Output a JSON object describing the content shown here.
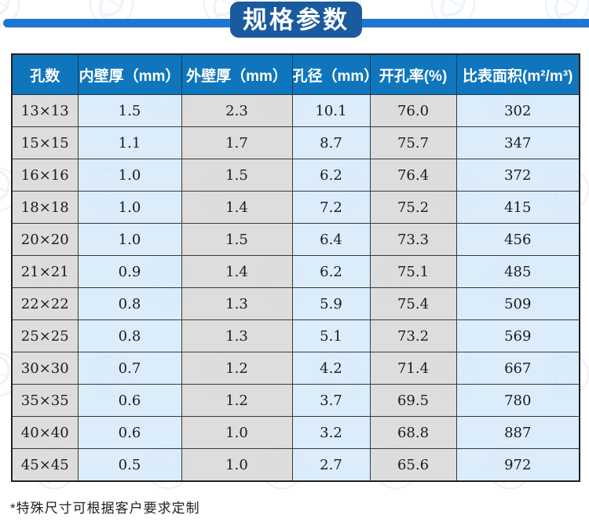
{
  "header": {
    "title": "规格参数"
  },
  "chart_data": {
    "type": "table",
    "title": "规格参数",
    "columns": [
      "孔数",
      "内壁厚（mm）",
      "外壁厚（mm）",
      "孔径（mm）",
      "开孔率(%)",
      "比表面积(m²/m³)"
    ],
    "rows": [
      [
        "13×13",
        "1.5",
        "2.3",
        "10.1",
        "76.0",
        "302"
      ],
      [
        "15×15",
        "1.1",
        "1.7",
        "8.7",
        "75.7",
        "347"
      ],
      [
        "16×16",
        "1.0",
        "1.5",
        "6.2",
        "76.4",
        "372"
      ],
      [
        "18×18",
        "1.0",
        "1.4",
        "7.2",
        "75.2",
        "415"
      ],
      [
        "20×20",
        "1.0",
        "1.5",
        "6.4",
        "73.3",
        "456"
      ],
      [
        "21×21",
        "0.9",
        "1.4",
        "6.2",
        "75.1",
        "485"
      ],
      [
        "22×22",
        "0.8",
        "1.3",
        "5.9",
        "75.4",
        "509"
      ],
      [
        "25×25",
        "0.8",
        "1.3",
        "5.1",
        "73.2",
        "569"
      ],
      [
        "30×30",
        "0.7",
        "1.2",
        "4.2",
        "71.4",
        "667"
      ],
      [
        "35×35",
        "0.6",
        "1.2",
        "3.7",
        "69.5",
        "780"
      ],
      [
        "40×40",
        "0.6",
        "1.0",
        "3.2",
        "68.8",
        "887"
      ],
      [
        "45×45",
        "0.5",
        "1.0",
        "2.7",
        "65.6",
        "972"
      ]
    ]
  },
  "footnote": {
    "text": "*特殊尺寸可根据客户要求定制"
  },
  "colors": {
    "accent_line": "#1d76d2",
    "badge_bg": "#1a5a9e",
    "header_bg": "#0f76bd",
    "header_text": "#ffffff",
    "cell_gray": "#d9d9d9",
    "cell_blue": "#d9eafa",
    "grid_border": "#3a3a3a",
    "body_text": "#1b1b1b",
    "watermark": "#86aed6"
  }
}
